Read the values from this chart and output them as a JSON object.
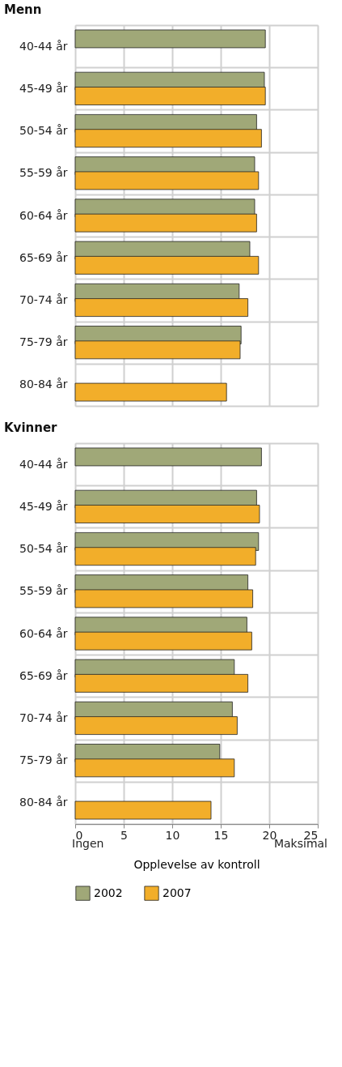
{
  "chart_data": [
    {
      "type": "bar",
      "orientation": "horizontal",
      "title": "Menn",
      "categories": [
        "40-44 år",
        "45-49 år",
        "50-54 år",
        "55-59 år",
        "60-64 år",
        "65-69 år",
        "70-74 år",
        "75-79 år",
        "80-84 år"
      ],
      "series": [
        {
          "name": "2002",
          "color": "#a0a878",
          "values": [
            19.6,
            19.5,
            18.7,
            18.5,
            18.5,
            18.0,
            16.9,
            17.1,
            null
          ]
        },
        {
          "name": "2007",
          "color": "#f2ae2a",
          "values": [
            null,
            19.6,
            19.2,
            18.9,
            18.7,
            18.9,
            17.8,
            17.0,
            15.6
          ]
        }
      ],
      "xlim": [
        0,
        25
      ],
      "xticks": [
        0,
        5,
        10,
        15,
        20,
        25
      ],
      "grid": true,
      "tick_labels": "y",
      "legend": "bottom left"
    },
    {
      "type": "bar",
      "orientation": "horizontal",
      "title": "Kvinner",
      "categories": [
        "40-44 år",
        "45-49 år",
        "50-54 år",
        "55-59 år",
        "60-64 år",
        "65-69 år",
        "70-74 år",
        "75-79 år",
        "80-84 år"
      ],
      "series": [
        {
          "name": "2002",
          "color": "#a0a878",
          "values": [
            19.2,
            18.7,
            18.9,
            17.8,
            17.7,
            16.4,
            16.2,
            14.9,
            null
          ]
        },
        {
          "name": "2007",
          "color": "#f2ae2a",
          "values": [
            null,
            19.0,
            18.6,
            18.3,
            18.2,
            17.8,
            16.7,
            16.4,
            14.0
          ]
        }
      ],
      "xlim": [
        0,
        25
      ],
      "xticks": [
        0,
        5,
        10,
        15,
        20,
        25
      ],
      "grid": true,
      "legend": "bottom left",
      "xlabel": "Opplevelse av kontroll",
      "annotations": [
        "Ingen",
        "Maksimal"
      ]
    }
  ]
}
